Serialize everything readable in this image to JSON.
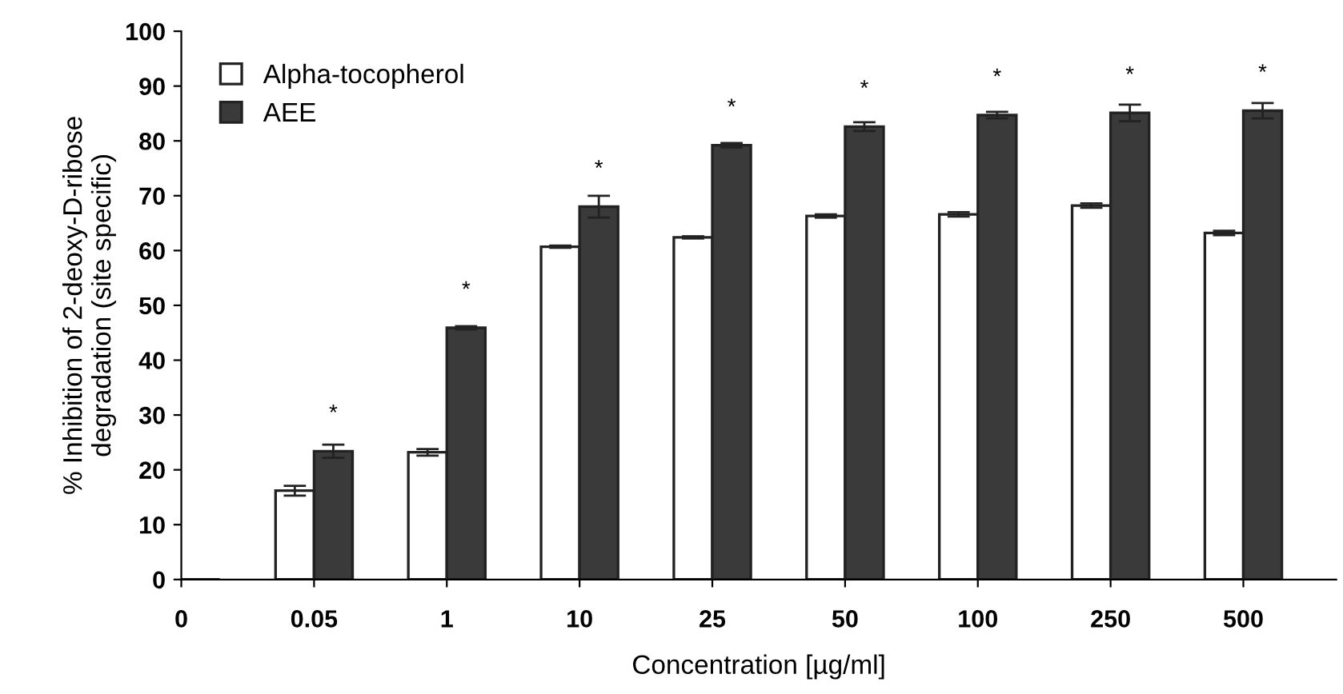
{
  "chart_data": {
    "type": "bar",
    "xlabel": "Concentration [µg/ml]",
    "ylabel": "% Inhibition of 2-deoxy-D-ribose\ndegradation (site specific)",
    "categories": [
      "0",
      "0.05",
      "1",
      "10",
      "25",
      "50",
      "100",
      "250",
      "500"
    ],
    "series": [
      {
        "name": "Alpha-tocopherol",
        "color": "#ffffff",
        "values": [
          null,
          16.2,
          23.2,
          60.7,
          62.4,
          66.3,
          66.6,
          68.2,
          63.2
        ],
        "errors": [
          null,
          0.9,
          0.6,
          0.2,
          0.2,
          0.3,
          0.4,
          0.4,
          0.4
        ]
      },
      {
        "name": "AEE",
        "color": "#3a3a3a",
        "values": [
          null,
          23.4,
          45.9,
          68.0,
          79.2,
          82.6,
          84.7,
          85.1,
          85.5
        ],
        "errors": [
          null,
          1.2,
          0.3,
          2.0,
          0.4,
          0.8,
          0.6,
          1.5,
          1.4
        ]
      }
    ],
    "annotations": [
      {
        "text": "*",
        "x": "0.05",
        "y": 23.4
      },
      {
        "text": "*",
        "x": "1",
        "y": 45.9
      },
      {
        "text": "*",
        "x": "10",
        "y": 68.0
      },
      {
        "text": "*",
        "x": "25",
        "y": 79.2
      },
      {
        "text": "*",
        "x": "50",
        "y": 82.6
      },
      {
        "text": "*",
        "x": "100",
        "y": 84.7
      },
      {
        "text": "*",
        "x": "250",
        "y": 85.1
      },
      {
        "text": "*",
        "x": "500",
        "y": 85.5
      }
    ],
    "ylim": [
      0,
      100
    ],
    "yticks": [
      0,
      10,
      20,
      30,
      40,
      50,
      60,
      70,
      80,
      90,
      100
    ],
    "grid": false,
    "legend": "top left"
  }
}
